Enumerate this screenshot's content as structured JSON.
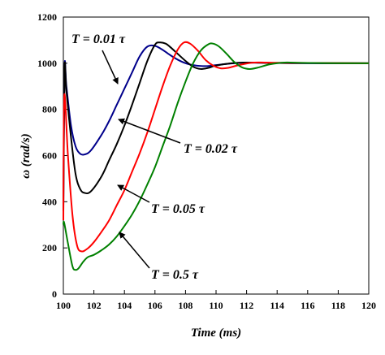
{
  "chart_data": {
    "type": "line",
    "title": "",
    "xlabel": "Time (ms)",
    "ylabel": "ω (rad/s)",
    "xlim": [
      100,
      120
    ],
    "ylim": [
      0,
      1200
    ],
    "xticks": [
      100,
      102,
      104,
      106,
      108,
      110,
      112,
      114,
      116,
      118,
      120
    ],
    "yticks": [
      0,
      200,
      400,
      600,
      800,
      1000,
      1200
    ],
    "grid": false,
    "legend": "none",
    "series": [
      {
        "color": "#00008b",
        "points": [
          [
            100,
            380
          ],
          [
            100.08,
            980
          ],
          [
            100.2,
            900
          ],
          [
            100.5,
            730
          ],
          [
            100.8,
            640
          ],
          [
            101.1,
            608
          ],
          [
            101.4,
            605
          ],
          [
            101.8,
            622
          ],
          [
            102.5,
            690
          ],
          [
            103,
            750
          ],
          [
            103.5,
            820
          ],
          [
            104,
            890
          ],
          [
            104.5,
            960
          ],
          [
            105,
            1030
          ],
          [
            105.5,
            1072
          ],
          [
            106,
            1075
          ],
          [
            106.5,
            1058
          ],
          [
            107,
            1035
          ],
          [
            107.5,
            1015
          ],
          [
            108,
            1000
          ],
          [
            108.5,
            992
          ],
          [
            109,
            988
          ],
          [
            109.5,
            988
          ],
          [
            110,
            992
          ],
          [
            111,
            999
          ],
          [
            112,
            1003
          ],
          [
            113,
            1002
          ],
          [
            115,
            1000
          ],
          [
            120,
            1000
          ]
        ]
      },
      {
        "color": "#000000",
        "points": [
          [
            100,
            360
          ],
          [
            100.08,
            975
          ],
          [
            100.2,
            880
          ],
          [
            100.5,
            680
          ],
          [
            100.8,
            520
          ],
          [
            101.1,
            455
          ],
          [
            101.4,
            438
          ],
          [
            101.8,
            445
          ],
          [
            102.5,
            510
          ],
          [
            103,
            580
          ],
          [
            103.5,
            650
          ],
          [
            104,
            730
          ],
          [
            104.5,
            820
          ],
          [
            105,
            915
          ],
          [
            105.5,
            1010
          ],
          [
            106,
            1080
          ],
          [
            106.3,
            1090
          ],
          [
            106.7,
            1085
          ],
          [
            107,
            1070
          ],
          [
            107.5,
            1040
          ],
          [
            108,
            1010
          ],
          [
            108.5,
            985
          ],
          [
            109,
            975
          ],
          [
            109.5,
            980
          ],
          [
            110,
            990
          ],
          [
            111,
            1000
          ],
          [
            112,
            1003
          ],
          [
            114,
            1001
          ],
          [
            120,
            1000
          ]
        ]
      },
      {
        "color": "#ff0000",
        "points": [
          [
            100,
            320
          ],
          [
            100.06,
            860
          ],
          [
            100.3,
            600
          ],
          [
            100.6,
            340
          ],
          [
            100.9,
            210
          ],
          [
            101.2,
            185
          ],
          [
            101.6,
            198
          ],
          [
            102,
            225
          ],
          [
            102.5,
            270
          ],
          [
            103,
            320
          ],
          [
            103.5,
            385
          ],
          [
            104,
            450
          ],
          [
            104.5,
            530
          ],
          [
            105,
            610
          ],
          [
            105.5,
            700
          ],
          [
            106,
            800
          ],
          [
            106.5,
            900
          ],
          [
            107,
            990
          ],
          [
            107.5,
            1060
          ],
          [
            107.9,
            1090
          ],
          [
            108.3,
            1085
          ],
          [
            108.8,
            1055
          ],
          [
            109.3,
            1015
          ],
          [
            109.8,
            990
          ],
          [
            110.3,
            978
          ],
          [
            110.8,
            980
          ],
          [
            111.5,
            992
          ],
          [
            112.5,
            1003
          ],
          [
            114,
            1002
          ],
          [
            120,
            1000
          ]
        ]
      },
      {
        "color": "#008000",
        "points": [
          [
            100,
            300
          ],
          [
            100.05,
            310
          ],
          [
            100.3,
            220
          ],
          [
            100.6,
            120
          ],
          [
            100.8,
            105
          ],
          [
            101,
            112
          ],
          [
            101.3,
            140
          ],
          [
            101.6,
            160
          ],
          [
            102,
            170
          ],
          [
            102.5,
            190
          ],
          [
            103,
            215
          ],
          [
            103.5,
            250
          ],
          [
            104,
            295
          ],
          [
            104.5,
            345
          ],
          [
            105,
            405
          ],
          [
            105.5,
            475
          ],
          [
            106,
            550
          ],
          [
            106.5,
            640
          ],
          [
            107,
            730
          ],
          [
            107.5,
            830
          ],
          [
            108,
            920
          ],
          [
            108.5,
            1000
          ],
          [
            109,
            1055
          ],
          [
            109.5,
            1082
          ],
          [
            109.8,
            1085
          ],
          [
            110.2,
            1072
          ],
          [
            110.7,
            1040
          ],
          [
            111.2,
            1005
          ],
          [
            111.7,
            982
          ],
          [
            112.2,
            975
          ],
          [
            112.8,
            982
          ],
          [
            113.5,
            995
          ],
          [
            114.5,
            1003
          ],
          [
            116,
            1001
          ],
          [
            120,
            1000
          ]
        ]
      }
    ],
    "annotations": [
      {
        "text": "T = 0.01 τ"
      },
      {
        "text": "T = 0.02 τ"
      },
      {
        "text": "T = 0.05 τ"
      },
      {
        "text": "T = 0.5 τ"
      }
    ]
  }
}
